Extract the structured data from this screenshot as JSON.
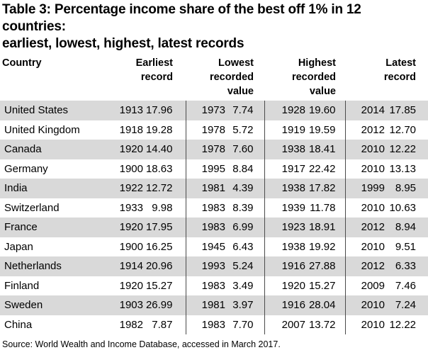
{
  "title": {
    "line1": "Table 3: Percentage income share of the best off 1% in 12 countries:",
    "line2": "earliest, lowest, highest, latest records"
  },
  "table": {
    "headers": {
      "country": "Country",
      "groups": [
        {
          "label": "Earliest record",
          "lines": [
            "Earliest",
            "record"
          ]
        },
        {
          "label": "Lowest recorded value",
          "lines": [
            "Lowest",
            "recorded",
            "value"
          ]
        },
        {
          "label": "Highest recorded value",
          "lines": [
            "Highest",
            "recorded",
            "value"
          ]
        },
        {
          "label": "Latest record",
          "lines": [
            "Latest",
            "record"
          ]
        }
      ]
    },
    "rows": [
      {
        "country": "United States",
        "earliest": {
          "year": "1913",
          "value": "17.96"
        },
        "lowest": {
          "year": "1973",
          "value": "7.74"
        },
        "highest": {
          "year": "1928",
          "value": "19.60"
        },
        "latest": {
          "year": "2014",
          "value": "17.85"
        }
      },
      {
        "country": "United Kingdom",
        "earliest": {
          "year": "1918",
          "value": "19.28"
        },
        "lowest": {
          "year": "1978",
          "value": "5.72"
        },
        "highest": {
          "year": "1919",
          "value": "19.59"
        },
        "latest": {
          "year": "2012",
          "value": "12.70"
        }
      },
      {
        "country": "Canada",
        "earliest": {
          "year": "1920",
          "value": "14.40"
        },
        "lowest": {
          "year": "1978",
          "value": "7.60"
        },
        "highest": {
          "year": "1938",
          "value": "18.41"
        },
        "latest": {
          "year": "2010",
          "value": "12.22"
        }
      },
      {
        "country": "Germany",
        "earliest": {
          "year": "1900",
          "value": "18.63"
        },
        "lowest": {
          "year": "1995",
          "value": "8.84"
        },
        "highest": {
          "year": "1917",
          "value": "22.42"
        },
        "latest": {
          "year": "2010",
          "value": "13.13"
        }
      },
      {
        "country": "India",
        "earliest": {
          "year": "1922",
          "value": "12.72"
        },
        "lowest": {
          "year": "1981",
          "value": "4.39"
        },
        "highest": {
          "year": "1938",
          "value": "17.82"
        },
        "latest": {
          "year": "1999",
          "value": "8.95"
        }
      },
      {
        "country": "Switzerland",
        "earliest": {
          "year": "1933",
          "value": "9.98"
        },
        "lowest": {
          "year": "1983",
          "value": "8.39"
        },
        "highest": {
          "year": "1939",
          "value": "11.78"
        },
        "latest": {
          "year": "2010",
          "value": "10.63"
        }
      },
      {
        "country": "France",
        "earliest": {
          "year": "1920",
          "value": "17.95"
        },
        "lowest": {
          "year": "1983",
          "value": "6.99"
        },
        "highest": {
          "year": "1923",
          "value": "18.91"
        },
        "latest": {
          "year": "2012",
          "value": "8.94"
        }
      },
      {
        "country": "Japan",
        "earliest": {
          "year": "1900",
          "value": "16.25"
        },
        "lowest": {
          "year": "1945",
          "value": "6.43"
        },
        "highest": {
          "year": "1938",
          "value": "19.92"
        },
        "latest": {
          "year": "2010",
          "value": "9.51"
        }
      },
      {
        "country": "Netherlands",
        "earliest": {
          "year": "1914",
          "value": "20.96"
        },
        "lowest": {
          "year": "1993",
          "value": "5.24"
        },
        "highest": {
          "year": "1916",
          "value": "27.88"
        },
        "latest": {
          "year": "2012",
          "value": "6.33"
        }
      },
      {
        "country": "Finland",
        "earliest": {
          "year": "1920",
          "value": "15.27"
        },
        "lowest": {
          "year": "1983",
          "value": "3.49"
        },
        "highest": {
          "year": "1920",
          "value": "15.27"
        },
        "latest": {
          "year": "2009",
          "value": "7.46"
        }
      },
      {
        "country": "Sweden",
        "earliest": {
          "year": "1903",
          "value": "26.99"
        },
        "lowest": {
          "year": "1981",
          "value": "3.97"
        },
        "highest": {
          "year": "1916",
          "value": "28.04"
        },
        "latest": {
          "year": "2010",
          "value": "7.24"
        }
      },
      {
        "country": "China",
        "earliest": {
          "year": "1982",
          "value": "7.87"
        },
        "lowest": {
          "year": "1983",
          "value": "7.70"
        },
        "highest": {
          "year": "2007",
          "value": "13.72"
        },
        "latest": {
          "year": "2010",
          "value": "12.22"
        }
      }
    ]
  },
  "source": "Source: World Wealth and Income Database, accessed in March 2017.",
  "colors": {
    "row_stripe": "#d9d9d9",
    "divider": "#4a4a4a",
    "text": "#000000",
    "background": "#ffffff"
  },
  "chart_data": {
    "type": "table",
    "title": "Table 3: Percentage income share of the best off 1% in 12 countries: earliest, lowest, highest, latest records",
    "columns": [
      "Country",
      "Earliest record year",
      "Earliest record value",
      "Lowest recorded year",
      "Lowest recorded value",
      "Highest recorded year",
      "Highest recorded value",
      "Latest record year",
      "Latest record value"
    ],
    "rows": [
      [
        "United States",
        1913,
        17.96,
        1973,
        7.74,
        1928,
        19.6,
        2014,
        17.85
      ],
      [
        "United Kingdom",
        1918,
        19.28,
        1978,
        5.72,
        1919,
        19.59,
        2012,
        12.7
      ],
      [
        "Canada",
        1920,
        14.4,
        1978,
        7.6,
        1938,
        18.41,
        2010,
        12.22
      ],
      [
        "Germany",
        1900,
        18.63,
        1995,
        8.84,
        1917,
        22.42,
        2010,
        13.13
      ],
      [
        "India",
        1922,
        12.72,
        1981,
        4.39,
        1938,
        17.82,
        1999,
        8.95
      ],
      [
        "Switzerland",
        1933,
        9.98,
        1983,
        8.39,
        1939,
        11.78,
        2010,
        10.63
      ],
      [
        "France",
        1920,
        17.95,
        1983,
        6.99,
        1923,
        18.91,
        2012,
        8.94
      ],
      [
        "Japan",
        1900,
        16.25,
        1945,
        6.43,
        1938,
        19.92,
        2010,
        9.51
      ],
      [
        "Netherlands",
        1914,
        20.96,
        1993,
        5.24,
        1916,
        27.88,
        2012,
        6.33
      ],
      [
        "Finland",
        1920,
        15.27,
        1983,
        3.49,
        1920,
        15.27,
        2009,
        7.46
      ],
      [
        "Sweden",
        1903,
        26.99,
        1981,
        3.97,
        1916,
        28.04,
        2010,
        7.24
      ],
      [
        "China",
        1982,
        7.87,
        1983,
        7.7,
        2007,
        13.72,
        2010,
        12.22
      ]
    ]
  }
}
